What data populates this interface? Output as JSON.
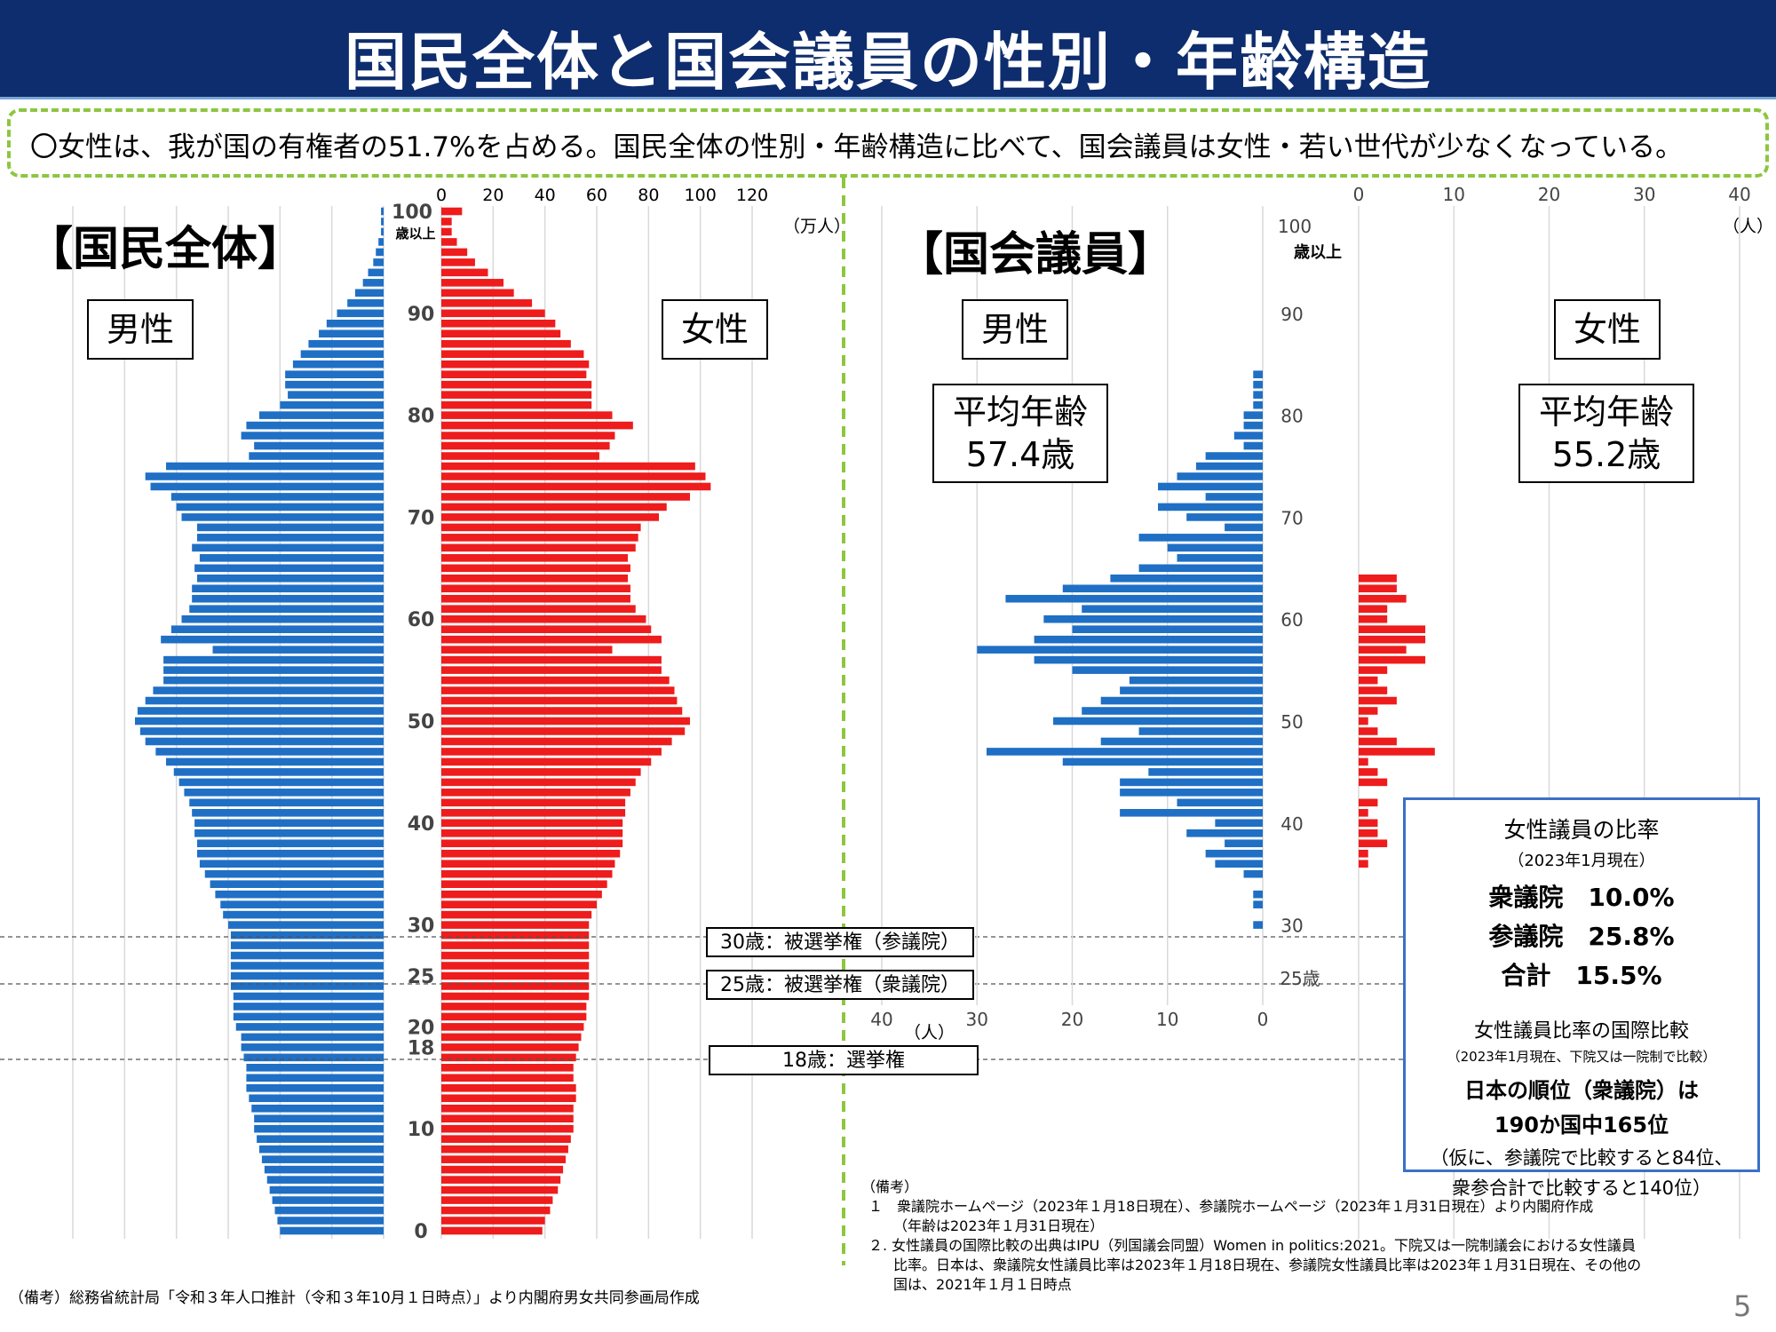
{
  "title": "国民全体と国会議員の性別・年齢構造",
  "summary": "〇女性は、我が国の有権者の51.7%を占める。国民全体の性別・年齢構造に比べて、国会議員は女性・若い世代が少なくなっている。",
  "left_panel": {
    "heading": "【国民全体】",
    "male_label": "男性",
    "female_label": "女性",
    "unit": "（万人）",
    "top_age_line1": "100",
    "top_age_line2": "歳以上"
  },
  "right_panel": {
    "heading": "【国会議員】",
    "male_label": "男性",
    "female_label": "女性",
    "male_avg_line1": "平均年齢",
    "male_avg_line2": "57.4歳",
    "female_avg_line1": "平均年齢",
    "female_avg_line2": "55.2歳",
    "unit_top": "（人）",
    "unit_bottom": "（人）",
    "top_age_line1": "100",
    "top_age_line2": "歳以上",
    "age25_label": "25歳"
  },
  "eligibility": {
    "age30": "30歳：被選挙権（参議院）",
    "age25": "25歳：被選挙権（衆議院）",
    "age18": "18歳：選挙権"
  },
  "ratio_box": {
    "title": "女性議員の比率",
    "date": "（2023年1月現在）",
    "line1": "衆議院　10.0%",
    "line2": "参議院　25.8%",
    "line3": "合計　15.5%",
    "intl_title": "女性議員比率の国際比較",
    "intl_note": "（2023年1月現在、下院又は一院制で比較）",
    "rank1": "日本の順位（衆議院）は",
    "rank2": "190か国中165位",
    "rank3": "（仮に、参議院で比較すると84位、",
    "rank4": "衆参合計で比較すると140位）"
  },
  "notes": {
    "head": "（備考）",
    "n1": "１　衆議院ホームページ（2023年１月18日現在）、参議院ホームページ（2023年１月31日現在）より内閣府作成",
    "n1b": "（年齢は2023年１月31日現在）",
    "n2": "２. 女性議員の国際比較の出典はIPU（列国議会同盟）Women in politics:2021。下院又は一院制議会における女性議員",
    "n2b": "比率。日本は、衆議院女性議員比率は2023年１月18日現在、参議院女性議員比率は2023年１月31日現在、その他の",
    "n2c": "国は、2021年１月１日時点"
  },
  "source_left": "（備考）総務省統計局「令和３年人口推計（令和３年10月１日時点）」より内閣府男女共同参画局作成",
  "page_number": "5",
  "colors": {
    "male": "#1f6fc5",
    "female": "#ee1c1c",
    "title_bg": "#0e2d6e",
    "dashed_green": "#8dc63f"
  },
  "chart_data": [
    {
      "type": "bar",
      "orientation": "horizontal-pyramid",
      "name": "国民全体",
      "unit": "万人",
      "x_ticks": [
        "0",
        "20",
        "40",
        "60",
        "80",
        "100",
        "120"
      ],
      "age_ticks": [
        "0",
        "10",
        "18",
        "20",
        "25",
        "30",
        "40",
        "50",
        "60",
        "70",
        "80",
        "90",
        "100"
      ],
      "xlim": [
        0,
        120
      ],
      "ages": [
        0,
        1,
        2,
        3,
        4,
        5,
        6,
        7,
        8,
        9,
        10,
        11,
        12,
        13,
        14,
        15,
        16,
        17,
        18,
        19,
        20,
        21,
        22,
        23,
        24,
        25,
        26,
        27,
        28,
        29,
        30,
        31,
        32,
        33,
        34,
        35,
        36,
        37,
        38,
        39,
        40,
        41,
        42,
        43,
        44,
        45,
        46,
        47,
        48,
        49,
        50,
        51,
        52,
        53,
        54,
        55,
        56,
        57,
        58,
        59,
        60,
        61,
        62,
        63,
        64,
        65,
        66,
        67,
        68,
        69,
        70,
        71,
        72,
        73,
        74,
        75,
        76,
        77,
        78,
        79,
        80,
        81,
        82,
        83,
        84,
        85,
        86,
        87,
        88,
        89,
        90,
        91,
        92,
        93,
        94,
        95,
        96,
        97,
        98,
        99,
        100
      ],
      "series": [
        {
          "name": "男性",
          "values": [
            40,
            41,
            42,
            43,
            44,
            45,
            46,
            47,
            48,
            49,
            50,
            50,
            51,
            52,
            53,
            53,
            53,
            54,
            55,
            55,
            57,
            58,
            58,
            58,
            59,
            59,
            59,
            59,
            59,
            59,
            60,
            62,
            63,
            65,
            67,
            69,
            71,
            72,
            72,
            73,
            73,
            74,
            75,
            77,
            79,
            81,
            84,
            88,
            92,
            94,
            96,
            95,
            92,
            89,
            85,
            85,
            85,
            66,
            86,
            82,
            78,
            75,
            74,
            74,
            72,
            73,
            71,
            74,
            72,
            72,
            78,
            80,
            82,
            90,
            92,
            84,
            52,
            50,
            55,
            53,
            48,
            40,
            37,
            38,
            38,
            35,
            32,
            29,
            25,
            22,
            18,
            14,
            11,
            8,
            6,
            4,
            3,
            2,
            1,
            1,
            1
          ]
        },
        {
          "name": "女性",
          "values": [
            39,
            40,
            42,
            43,
            45,
            46,
            47,
            48,
            49,
            50,
            51,
            51,
            51,
            52,
            52,
            51,
            51,
            52,
            53,
            54,
            55,
            56,
            56,
            57,
            57,
            57,
            57,
            57,
            57,
            57,
            57,
            58,
            60,
            62,
            64,
            66,
            67,
            69,
            70,
            70,
            70,
            71,
            71,
            73,
            75,
            77,
            81,
            85,
            89,
            94,
            96,
            93,
            91,
            90,
            88,
            85,
            85,
            66,
            85,
            81,
            79,
            75,
            73,
            73,
            72,
            73,
            72,
            75,
            76,
            77,
            84,
            87,
            96,
            104,
            102,
            98,
            61,
            65,
            67,
            74,
            66,
            58,
            58,
            58,
            56,
            57,
            55,
            50,
            46,
            44,
            40,
            35,
            28,
            24,
            18,
            13,
            10,
            6,
            4,
            4,
            8
          ]
        }
      ]
    },
    {
      "type": "bar",
      "orientation": "horizontal-pyramid",
      "name": "国会議員",
      "unit": "人",
      "x_ticks_top": [
        "0",
        "10",
        "20",
        "30",
        "40"
      ],
      "x_ticks_bottom": [
        "40",
        "30",
        "20",
        "10",
        "0"
      ],
      "age_ticks": [
        "25歳",
        "30",
        "40",
        "50",
        "60",
        "70",
        "80",
        "90",
        "100"
      ],
      "xlim": [
        0,
        40
      ],
      "ages": [
        30,
        31,
        32,
        33,
        34,
        35,
        36,
        37,
        38,
        39,
        40,
        41,
        42,
        43,
        44,
        45,
        46,
        47,
        48,
        49,
        50,
        51,
        52,
        53,
        54,
        55,
        56,
        57,
        58,
        59,
        60,
        61,
        62,
        63,
        64,
        65,
        66,
        67,
        68,
        69,
        70,
        71,
        72,
        73,
        74,
        75,
        76,
        77,
        78,
        79,
        80,
        81,
        82,
        83,
        84
      ],
      "series": [
        {
          "name": "男性",
          "values": [
            1,
            0,
            1,
            1,
            0,
            2,
            5,
            6,
            4,
            8,
            5,
            15,
            9,
            15,
            15,
            12,
            21,
            29,
            17,
            13,
            22,
            19,
            17,
            15,
            14,
            20,
            24,
            30,
            24,
            20,
            23,
            19,
            27,
            21,
            16,
            13,
            9,
            10,
            13,
            4,
            8,
            11,
            6,
            11,
            9,
            7,
            6,
            2,
            3,
            2,
            2,
            1,
            1,
            1,
            1
          ]
        },
        {
          "name": "女性",
          "values": [
            0,
            0,
            0,
            0,
            0,
            0,
            1,
            1,
            3,
            2,
            2,
            1,
            2,
            0,
            3,
            2,
            1,
            8,
            4,
            2,
            1,
            2,
            4,
            3,
            2,
            3,
            7,
            5,
            7,
            7,
            3,
            3,
            5,
            4,
            4,
            0,
            0,
            0,
            0,
            0,
            0,
            0,
            0,
            0,
            0,
            0,
            0,
            0,
            0,
            0,
            0,
            0,
            0,
            0,
            0
          ]
        }
      ]
    }
  ]
}
